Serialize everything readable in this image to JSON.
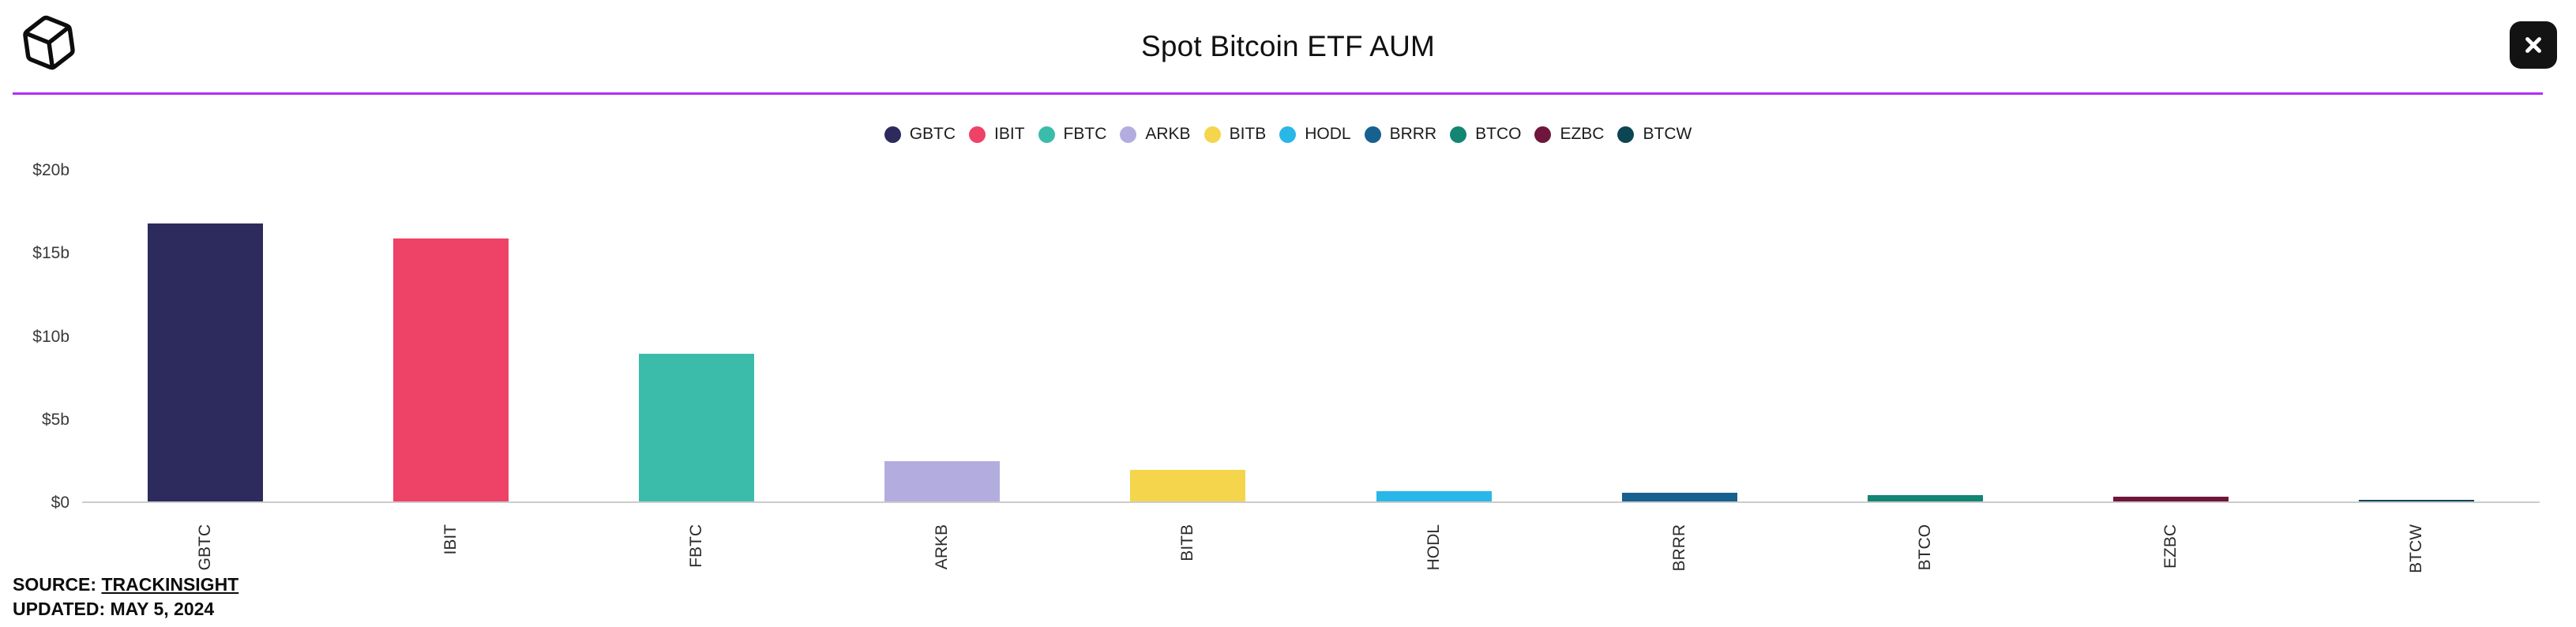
{
  "header": {
    "title": "Spot Bitcoin ETF AUM"
  },
  "icons": {
    "logo": "box-logo-icon",
    "close": "close-icon"
  },
  "colors": {
    "divider": "#b22ff5",
    "close_button_bg": "#131313",
    "axis_line": "#cccccc"
  },
  "chart_data": {
    "type": "bar",
    "title": "Spot Bitcoin ETF AUM",
    "unit": "USD billions",
    "categories": [
      "GBTC",
      "IBIT",
      "FBTC",
      "ARKB",
      "BITB",
      "HODL",
      "BRRR",
      "BTCO",
      "EZBC",
      "BTCW"
    ],
    "values": [
      16.7,
      15.8,
      8.9,
      2.4,
      1.9,
      0.6,
      0.5,
      0.4,
      0.3,
      0.05
    ],
    "colors": [
      "#2d2a5d",
      "#ee4266",
      "#3bbcab",
      "#b3addf",
      "#f5d54b",
      "#29b7e8",
      "#17608f",
      "#128573",
      "#6e163b",
      "#0e4553"
    ],
    "xlabel": "",
    "ylabel": "",
    "ylim": [
      0,
      20
    ],
    "yticks": [
      {
        "label": "$20b",
        "value": 20
      },
      {
        "label": "$15b",
        "value": 15
      },
      {
        "label": "$10b",
        "value": 10
      },
      {
        "label": "$5b",
        "value": 5
      },
      {
        "label": "$0",
        "value": 0
      }
    ],
    "grid": false,
    "legend_position": "top-center",
    "x_label_rotation": -90
  },
  "footer": {
    "source_label": "SOURCE:",
    "source_link_text": "TRACKINSIGHT",
    "updated_text": "UPDATED: MAY 5, 2024"
  }
}
